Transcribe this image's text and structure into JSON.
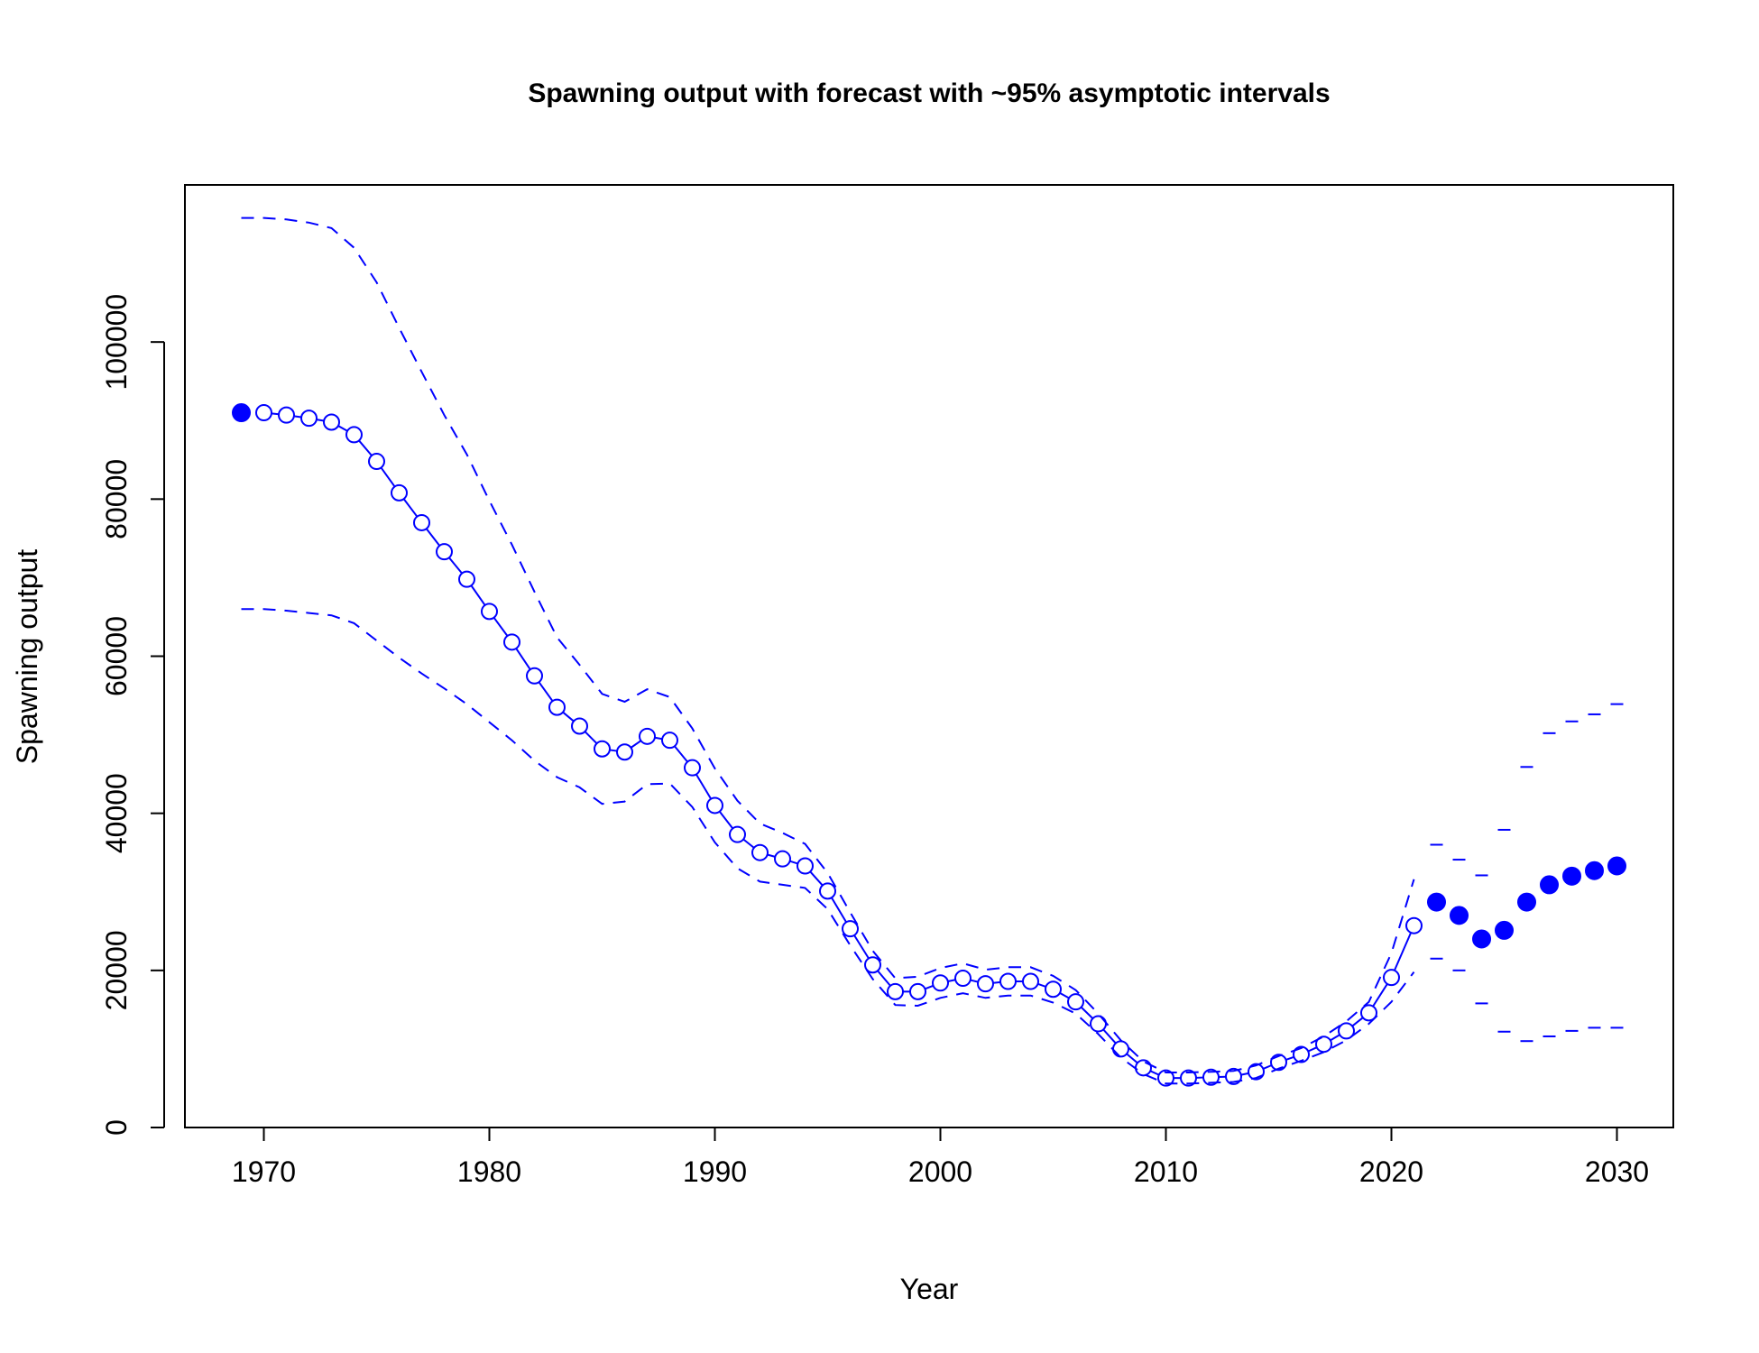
{
  "chart_data": {
    "type": "line",
    "title": "Spawning output with forecast with ~95% asymptotic intervals",
    "xlabel": "Year",
    "ylabel": "Spawning output",
    "xlim": [
      1966.5,
      2032.5
    ],
    "ylim": [
      0,
      120000
    ],
    "xticks": [
      1970,
      1980,
      1990,
      2000,
      2010,
      2020,
      2030
    ],
    "yticks": [
      0,
      20000,
      40000,
      60000,
      80000,
      100000
    ],
    "colors": {
      "series": "#0000ff",
      "axis": "#000000"
    },
    "grid": false,
    "virgin": {
      "x": 1969,
      "y": 91000,
      "lower": 66000,
      "upper": 115800
    },
    "series": [
      {
        "role": "estimate",
        "x": [
          1970,
          1971,
          1972,
          1973,
          1974,
          1975,
          1976,
          1977,
          1978,
          1979,
          1980,
          1981,
          1982,
          1983,
          1984,
          1985,
          1986,
          1987,
          1988,
          1989,
          1990,
          1991,
          1992,
          1993,
          1994,
          1995,
          1996,
          1997,
          1998,
          1999,
          2000,
          2001,
          2002,
          2003,
          2004,
          2005,
          2006,
          2007,
          2008,
          2009,
          2010,
          2011,
          2012,
          2013,
          2014,
          2015,
          2016,
          2017,
          2018,
          2019,
          2020,
          2021
        ],
        "y": [
          91000,
          90700,
          90300,
          89800,
          88200,
          84800,
          80800,
          77000,
          73300,
          69800,
          65700,
          61800,
          57500,
          53500,
          51100,
          48200,
          47800,
          49800,
          49300,
          45800,
          41000,
          37300,
          35000,
          34200,
          33300,
          30100,
          25300,
          20700,
          17300,
          17300,
          18400,
          19000,
          18300,
          18600,
          18600,
          17600,
          16000,
          13200,
          10000,
          7600,
          6300,
          6300,
          6400,
          6500,
          7100,
          8300,
          9300,
          10600,
          12300,
          14600,
          19100,
          25700
        ],
        "lower": [
          66000,
          65800,
          65500,
          65200,
          64200,
          62000,
          59800,
          57800,
          55900,
          53900,
          51600,
          49300,
          46700,
          44600,
          43300,
          41200,
          41500,
          43700,
          43800,
          40800,
          36300,
          33000,
          31300,
          30900,
          30500,
          27800,
          23200,
          18900,
          15600,
          15500,
          16500,
          17100,
          16500,
          16800,
          16800,
          15900,
          14500,
          11900,
          8900,
          6800,
          5600,
          5600,
          5700,
          5800,
          6300,
          7500,
          8500,
          9600,
          11100,
          13200,
          16000,
          19800
        ],
        "upper": [
          115800,
          115600,
          115200,
          114500,
          112000,
          107600,
          101800,
          96200,
          90700,
          85700,
          79800,
          74200,
          68200,
          62400,
          58900,
          55200,
          54200,
          55800,
          54800,
          50800,
          45700,
          41600,
          38700,
          37500,
          36100,
          32400,
          27400,
          22500,
          19000,
          19200,
          20300,
          20900,
          20100,
          20400,
          20400,
          19300,
          17500,
          14500,
          11100,
          8400,
          7000,
          7000,
          7100,
          7200,
          7900,
          9100,
          10100,
          11600,
          13500,
          16000,
          22200,
          31600
        ]
      },
      {
        "role": "forecast",
        "x": [
          2022,
          2023,
          2024,
          2025,
          2026,
          2027,
          2028,
          2029,
          2030
        ],
        "y": [
          28700,
          27000,
          24000,
          25100,
          28700,
          30900,
          32000,
          32700,
          33300
        ],
        "lower": [
          21500,
          20000,
          15800,
          12200,
          11000,
          11600,
          12300,
          12700,
          12700
        ],
        "upper": [
          36000,
          34100,
          32100,
          37900,
          45900,
          50200,
          51700,
          52600,
          53900
        ]
      }
    ]
  }
}
